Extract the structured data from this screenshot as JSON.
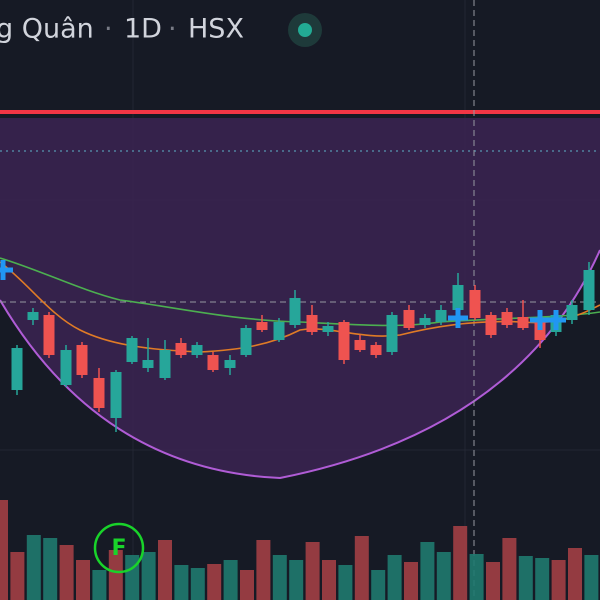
{
  "header": {
    "symbol": "g Quân",
    "separator": "·",
    "interval": "1D",
    "exchange": "HSX"
  },
  "marker": "F"
}
